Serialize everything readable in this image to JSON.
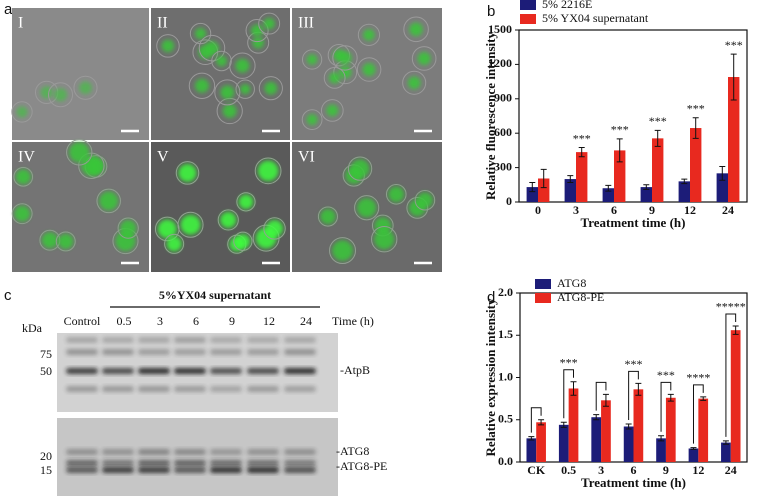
{
  "panel_labels": [
    "a",
    "b",
    "c",
    "d"
  ],
  "micrographs": [
    "I",
    "II",
    "III",
    "IV",
    "V",
    "VI"
  ],
  "blot": {
    "group_label": "5%YX04 supernatant",
    "lanes": [
      "Control",
      "0.5",
      "3",
      "6",
      "9",
      "12",
      "24"
    ],
    "lane_axis_label": "Time (h)",
    "unit": "kDa",
    "markers": [
      75,
      50,
      20,
      15
    ],
    "bands": [
      "-AtpB",
      "-ATG8",
      "-ATG8-PE"
    ]
  },
  "chart_data": [
    {
      "type": "bar",
      "ylabel": "Relative fluorescence intensity",
      "xlabel": "Treatment time (h)",
      "categories": [
        "0",
        "3",
        "6",
        "9",
        "12",
        "24"
      ],
      "series": [
        {
          "name": "5% 2216E",
          "color": "#1c1c78",
          "values": [
            130,
            200,
            120,
            130,
            180,
            250
          ],
          "errors": [
            40,
            30,
            25,
            20,
            20,
            60
          ]
        },
        {
          "name": "5% YX04 supernatant",
          "color": "#e8291f",
          "values": [
            205,
            435,
            450,
            555,
            645,
            1090
          ],
          "errors": [
            80,
            40,
            100,
            70,
            90,
            200
          ]
        }
      ],
      "significance": [
        null,
        "***",
        "***",
        "***",
        "***",
        "***"
      ],
      "significance_style": "star",
      "ylim": [
        0,
        1500
      ],
      "yticks": [
        0,
        300,
        600,
        900,
        1200,
        1500
      ]
    },
    {
      "type": "bar",
      "ylabel": "Relative expression intensity",
      "xlabel": "Treatment time (h)",
      "categories": [
        "CK",
        "0.5",
        "3",
        "6",
        "9",
        "12",
        "24"
      ],
      "series": [
        {
          "name": "ATG8",
          "color": "#1c1c78",
          "values": [
            0.28,
            0.44,
            0.53,
            0.42,
            0.28,
            0.16,
            0.23
          ],
          "errors": [
            0.02,
            0.03,
            0.03,
            0.03,
            0.03,
            0.01,
            0.02
          ]
        },
        {
          "name": "ATG8-PE",
          "color": "#e8291f",
          "values": [
            0.47,
            0.87,
            0.73,
            0.86,
            0.76,
            0.75,
            1.56
          ],
          "errors": [
            0.03,
            0.08,
            0.07,
            0.07,
            0.04,
            0.02,
            0.05
          ]
        }
      ],
      "significance": [
        null,
        "***",
        null,
        "***",
        "***",
        "****",
        "*****"
      ],
      "significance_style": "bracket",
      "ylim": [
        0,
        2
      ],
      "yticks": [
        {
          "value": 0,
          "label": "0.0"
        },
        0.5,
        {
          "value": 1,
          "label": "1.0"
        },
        1.5,
        {
          "value": 2,
          "label": "2.0"
        }
      ]
    }
  ]
}
